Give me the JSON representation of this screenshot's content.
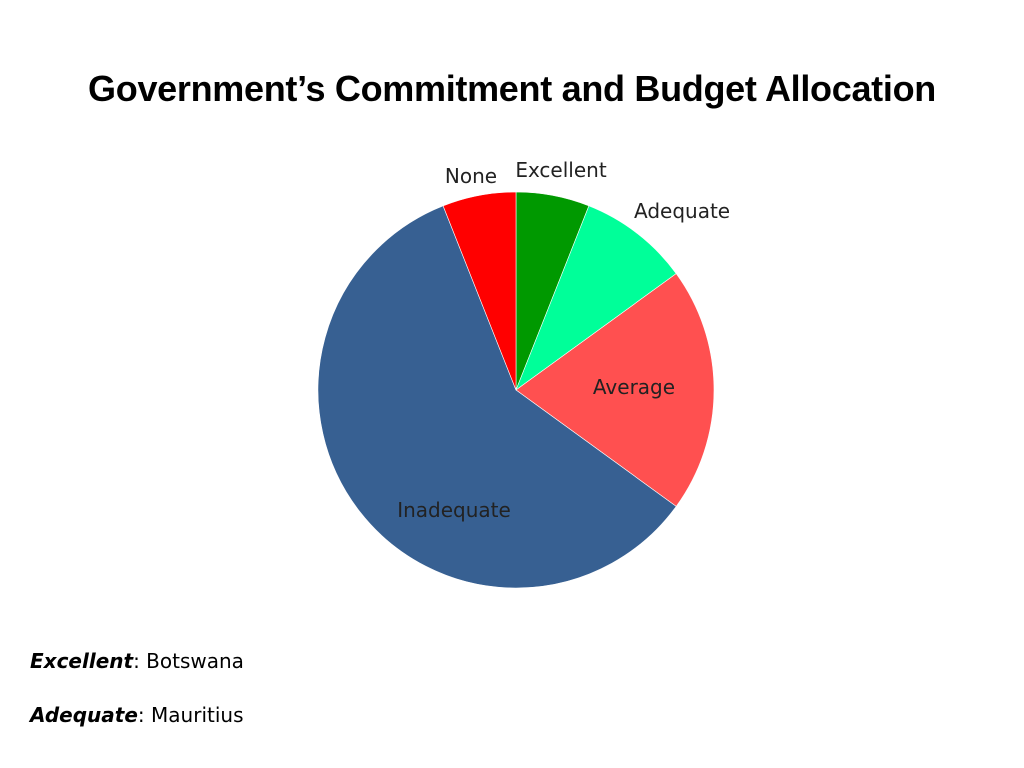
{
  "page": {
    "title": "Government’s Commitment and Budget Allocation"
  },
  "chart_data": {
    "type": "pie",
    "title": "",
    "start_angle_deg": 0,
    "direction": "clockwise",
    "slices": [
      {
        "label": "Excellent",
        "value": 6,
        "color": "#009900"
      },
      {
        "label": "Adequate",
        "value": 9,
        "color": "#00FF99"
      },
      {
        "label": "Average",
        "value": 20,
        "color": "#FF5050"
      },
      {
        "label": "Inadequate",
        "value": 59,
        "color": "#376092"
      },
      {
        "label": "None",
        "value": 6,
        "color": "#FF0000"
      }
    ]
  },
  "notes": [
    {
      "key": "Excellent",
      "sep": ": ",
      "value": "Botswana"
    },
    {
      "key": "Adequate",
      "sep": ": ",
      "value": "Mauritius"
    }
  ]
}
